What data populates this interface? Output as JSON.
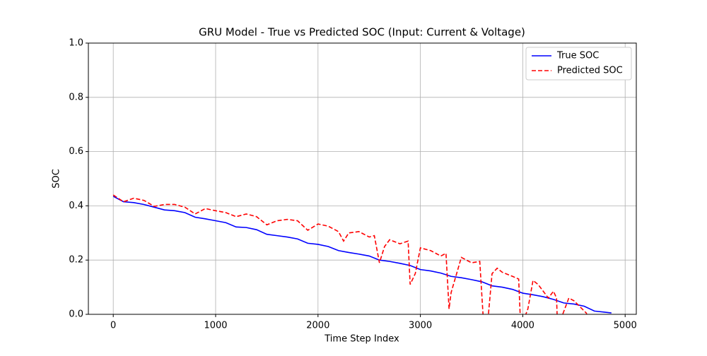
{
  "chart_data": {
    "type": "line",
    "title": "GRU Model - True vs Predicted SOC (Input: Current & Voltage)",
    "xlabel": "Time Step Index",
    "ylabel": "SOC",
    "xlim": [
      -243,
      5109
    ],
    "ylim": [
      0,
      1
    ],
    "xticks": [
      0,
      1000,
      2000,
      3000,
      4000,
      5000
    ],
    "yticks": [
      {
        "value": 0,
        "label": "0.0"
      },
      0.2,
      0.4,
      0.6,
      0.8,
      {
        "value": 1,
        "label": "1.0"
      }
    ],
    "grid": true,
    "legend": "upper-right",
    "series": [
      {
        "name": "True SOC",
        "color": "#0000ff",
        "dash": false,
        "x": [
          0,
          100,
          200,
          300,
          400,
          500,
          600,
          700,
          800,
          900,
          1000,
          1100,
          1200,
          1300,
          1400,
          1500,
          1600,
          1700,
          1800,
          1900,
          2000,
          2100,
          2200,
          2300,
          2400,
          2500,
          2600,
          2700,
          2800,
          2900,
          3000,
          3100,
          3200,
          3300,
          3400,
          3500,
          3600,
          3700,
          3800,
          3900,
          4000,
          4100,
          4200,
          4300,
          4400,
          4500,
          4600,
          4700,
          4800,
          4866
        ],
        "values": [
          0.435,
          0.415,
          0.412,
          0.405,
          0.395,
          0.385,
          0.382,
          0.375,
          0.358,
          0.352,
          0.345,
          0.338,
          0.322,
          0.32,
          0.312,
          0.295,
          0.29,
          0.285,
          0.278,
          0.262,
          0.258,
          0.25,
          0.235,
          0.228,
          0.222,
          0.215,
          0.2,
          0.195,
          0.188,
          0.18,
          0.165,
          0.16,
          0.152,
          0.14,
          0.135,
          0.128,
          0.12,
          0.105,
          0.1,
          0.092,
          0.078,
          0.072,
          0.065,
          0.055,
          0.042,
          0.038,
          0.03,
          0.012,
          0.008,
          0.005
        ]
      },
      {
        "name": "Predicted SOC",
        "color": "#ff0000",
        "dash": true,
        "x": [
          0,
          100,
          200,
          300,
          400,
          500,
          600,
          700,
          800,
          900,
          1000,
          1100,
          1200,
          1300,
          1400,
          1500,
          1600,
          1700,
          1800,
          1900,
          2000,
          2100,
          2200,
          2250,
          2300,
          2400,
          2500,
          2550,
          2600,
          2650,
          2700,
          2800,
          2880,
          2900,
          2950,
          3000,
          3100,
          3200,
          3250,
          3280,
          3300,
          3400,
          3500,
          3580,
          3620,
          3660,
          3700,
          3750,
          3800,
          3900,
          3960,
          3980,
          4050,
          4100,
          4150,
          4250,
          4300,
          4330,
          4340,
          4450,
          4500,
          4580,
          4620,
          4680
        ],
        "values": [
          0.44,
          0.415,
          0.428,
          0.42,
          0.398,
          0.405,
          0.405,
          0.395,
          0.37,
          0.39,
          0.382,
          0.375,
          0.36,
          0.37,
          0.36,
          0.33,
          0.345,
          0.35,
          0.345,
          0.31,
          0.333,
          0.325,
          0.305,
          0.27,
          0.3,
          0.305,
          0.285,
          0.29,
          0.19,
          0.25,
          0.275,
          0.26,
          0.27,
          0.11,
          0.15,
          0.245,
          0.235,
          0.215,
          0.225,
          0.02,
          0.08,
          0.21,
          0.19,
          0.195,
          -0.05,
          -0.02,
          0.15,
          0.17,
          0.155,
          0.14,
          0.13,
          -0.05,
          0.02,
          0.125,
          0.11,
          0.06,
          0.085,
          0.06,
          -0.05,
          0.06,
          0.05,
          0.02,
          0.005,
          -0.05
        ]
      }
    ]
  }
}
